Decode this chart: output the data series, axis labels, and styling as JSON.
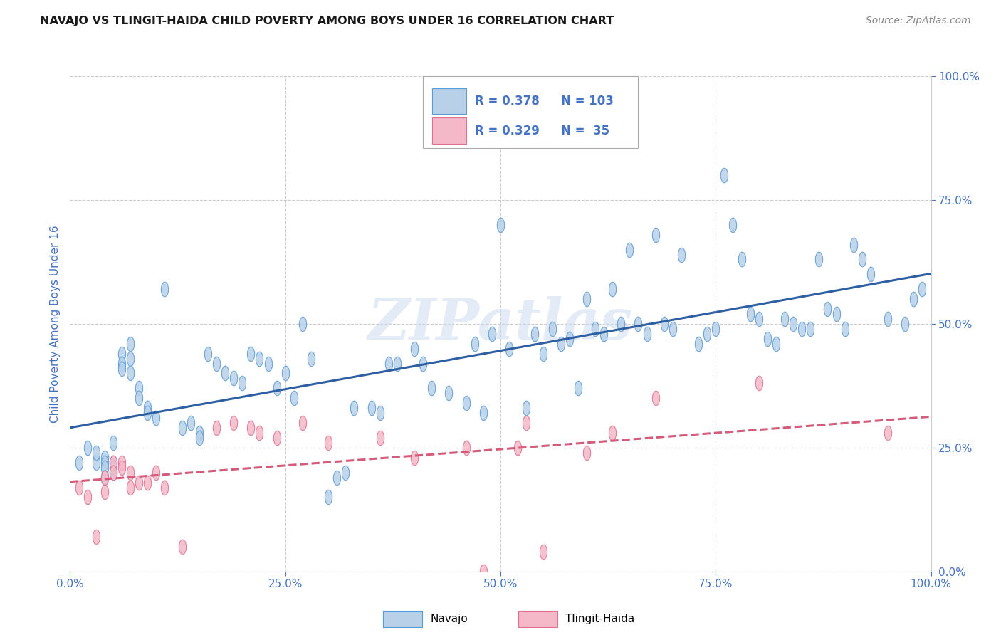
{
  "title": "NAVAJO VS TLINGIT-HAIDA CHILD POVERTY AMONG BOYS UNDER 16 CORRELATION CHART",
  "source": "Source: ZipAtlas.com",
  "ylabel": "Child Poverty Among Boys Under 16",
  "watermark": "ZIPatlas",
  "navajo_R": 0.378,
  "navajo_N": 103,
  "tlingit_R": 0.329,
  "tlingit_N": 35,
  "navajo_color": "#b8d0e8",
  "navajo_edge_color": "#5b9bd5",
  "tlingit_color": "#f4b8c8",
  "tlingit_edge_color": "#e07090",
  "navajo_line_color": "#2e5fa3",
  "tlingit_line_color": "#d45b7a",
  "background_color": "#ffffff",
  "grid_color": "#cccccc",
  "title_color": "#1a1a1a",
  "axis_tick_color": "#4472c4",
  "legend_color": "#4472c4",
  "xlim": [
    0.0,
    1.0
  ],
  "ylim": [
    0.0,
    1.0
  ],
  "navajo_x": [
    0.01,
    0.02,
    0.03,
    0.03,
    0.04,
    0.04,
    0.04,
    0.04,
    0.05,
    0.05,
    0.05,
    0.05,
    0.06,
    0.06,
    0.06,
    0.07,
    0.07,
    0.07,
    0.08,
    0.08,
    0.09,
    0.09,
    0.1,
    0.11,
    0.13,
    0.14,
    0.15,
    0.15,
    0.16,
    0.17,
    0.18,
    0.19,
    0.2,
    0.21,
    0.22,
    0.23,
    0.24,
    0.25,
    0.26,
    0.27,
    0.28,
    0.3,
    0.31,
    0.32,
    0.33,
    0.35,
    0.36,
    0.37,
    0.38,
    0.4,
    0.41,
    0.42,
    0.44,
    0.46,
    0.47,
    0.48,
    0.49,
    0.5,
    0.51,
    0.53,
    0.54,
    0.55,
    0.56,
    0.57,
    0.58,
    0.59,
    0.6,
    0.61,
    0.62,
    0.63,
    0.64,
    0.65,
    0.66,
    0.67,
    0.68,
    0.69,
    0.7,
    0.71,
    0.73,
    0.74,
    0.75,
    0.76,
    0.77,
    0.78,
    0.79,
    0.8,
    0.81,
    0.82,
    0.83,
    0.84,
    0.85,
    0.86,
    0.87,
    0.88,
    0.89,
    0.9,
    0.91,
    0.92,
    0.93,
    0.95,
    0.97,
    0.98,
    0.99
  ],
  "navajo_y": [
    0.22,
    0.25,
    0.22,
    0.24,
    0.23,
    0.22,
    0.21,
    0.19,
    0.26,
    0.22,
    0.21,
    0.2,
    0.44,
    0.42,
    0.41,
    0.46,
    0.43,
    0.4,
    0.37,
    0.35,
    0.33,
    0.32,
    0.31,
    0.57,
    0.29,
    0.3,
    0.28,
    0.27,
    0.44,
    0.42,
    0.4,
    0.39,
    0.38,
    0.44,
    0.43,
    0.42,
    0.37,
    0.4,
    0.35,
    0.5,
    0.43,
    0.15,
    0.19,
    0.2,
    0.33,
    0.33,
    0.32,
    0.42,
    0.42,
    0.45,
    0.42,
    0.37,
    0.36,
    0.34,
    0.46,
    0.32,
    0.48,
    0.7,
    0.45,
    0.33,
    0.48,
    0.44,
    0.49,
    0.46,
    0.47,
    0.37,
    0.55,
    0.49,
    0.48,
    0.57,
    0.5,
    0.65,
    0.5,
    0.48,
    0.68,
    0.5,
    0.49,
    0.64,
    0.46,
    0.48,
    0.49,
    0.8,
    0.7,
    0.63,
    0.52,
    0.51,
    0.47,
    0.46,
    0.51,
    0.5,
    0.49,
    0.49,
    0.63,
    0.53,
    0.52,
    0.49,
    0.66,
    0.63,
    0.6,
    0.51,
    0.5,
    0.55,
    0.57
  ],
  "tlingit_x": [
    0.01,
    0.02,
    0.03,
    0.04,
    0.04,
    0.05,
    0.05,
    0.06,
    0.06,
    0.07,
    0.07,
    0.08,
    0.09,
    0.1,
    0.11,
    0.13,
    0.17,
    0.19,
    0.21,
    0.22,
    0.24,
    0.27,
    0.3,
    0.36,
    0.4,
    0.46,
    0.48,
    0.52,
    0.53,
    0.55,
    0.6,
    0.63,
    0.68,
    0.8,
    0.95
  ],
  "tlingit_y": [
    0.17,
    0.15,
    0.07,
    0.19,
    0.16,
    0.22,
    0.2,
    0.22,
    0.21,
    0.2,
    0.17,
    0.18,
    0.18,
    0.2,
    0.17,
    0.05,
    0.29,
    0.3,
    0.29,
    0.28,
    0.27,
    0.3,
    0.26,
    0.27,
    0.23,
    0.25,
    0.0,
    0.25,
    0.3,
    0.04,
    0.24,
    0.28,
    0.35,
    0.38,
    0.28
  ]
}
